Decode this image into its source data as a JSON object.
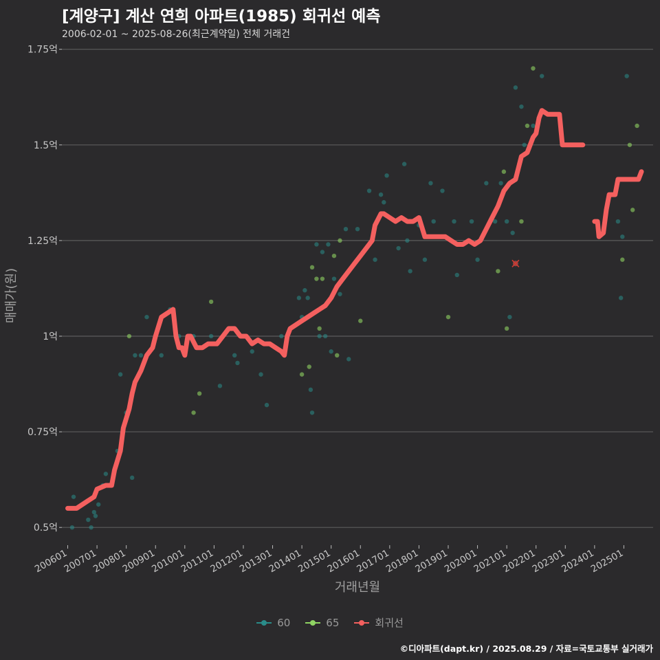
{
  "header": {
    "title": "[계양구] 계산 연희 아파트(1985) 회귀선 예측",
    "subtitle": "2006-02-01 ~ 2025-08-26(최근계약일) 전체 거래건"
  },
  "footer": {
    "credit": "©디아파트(dapt.kr) / 2025.08.29 / 자료=국토교통부 실거래가"
  },
  "colors": {
    "s60": "#2a8c8a",
    "s65": "#8fd463",
    "regression": "#f4605f",
    "grid": "#5c5c5c",
    "text": "#c8c8c8"
  },
  "chart_data": {
    "type": "scatter",
    "title": "[계양구] 계산 연희 아파트(1985) 회귀선 예측",
    "xlabel": "거래년월",
    "ylabel": "매매가(원)",
    "x_range": [
      2005.8,
      2026.0
    ],
    "ylim": [
      0.45,
      1.78
    ],
    "y_ticks": [
      {
        "value": 0.5,
        "label": "0.5억"
      },
      {
        "value": 0.75,
        "label": "0.75억"
      },
      {
        "value": 1.0,
        "label": "1억"
      },
      {
        "value": 1.25,
        "label": "1.25억"
      },
      {
        "value": 1.5,
        "label": "1.5억"
      },
      {
        "value": 1.75,
        "label": "1.75억"
      }
    ],
    "x_ticks": [
      "200601",
      "200701",
      "200801",
      "200901",
      "201001",
      "201101",
      "201201",
      "201301",
      "201401",
      "201501",
      "201601",
      "201701",
      "201801",
      "201901",
      "202001",
      "202101",
      "202201",
      "202301",
      "202401",
      "202501"
    ],
    "legend": [
      {
        "name": "60",
        "key": "s60"
      },
      {
        "name": "65",
        "key": "s65"
      },
      {
        "name": "회귀선",
        "key": "regression"
      }
    ],
    "series_60": [
      [
        2006.15,
        0.5
      ],
      [
        2006.2,
        0.58
      ],
      [
        2006.7,
        0.52
      ],
      [
        2006.8,
        0.5
      ],
      [
        2006.9,
        0.54
      ],
      [
        2006.95,
        0.53
      ],
      [
        2007.05,
        0.56
      ],
      [
        2007.2,
        0.61
      ],
      [
        2007.3,
        0.64
      ],
      [
        2007.7,
        0.7
      ],
      [
        2007.8,
        0.9
      ],
      [
        2008.0,
        0.8
      ],
      [
        2008.2,
        0.63
      ],
      [
        2008.3,
        0.95
      ],
      [
        2008.5,
        0.95
      ],
      [
        2008.7,
        1.05
      ],
      [
        2009.2,
        0.95
      ],
      [
        2009.5,
        1.07
      ],
      [
        2009.8,
        1.0
      ],
      [
        2010.3,
        1.0
      ],
      [
        2010.9,
        1.0
      ],
      [
        2011.2,
        0.87
      ],
      [
        2011.7,
        0.95
      ],
      [
        2011.8,
        0.93
      ],
      [
        2012.3,
        0.96
      ],
      [
        2012.6,
        0.9
      ],
      [
        2012.8,
        0.82
      ],
      [
        2013.3,
        1.0
      ],
      [
        2013.6,
        1.02
      ],
      [
        2013.9,
        1.1
      ],
      [
        2014.0,
        1.05
      ],
      [
        2014.1,
        1.12
      ],
      [
        2014.2,
        1.1
      ],
      [
        2014.3,
        0.86
      ],
      [
        2014.35,
        0.8
      ],
      [
        2014.5,
        1.24
      ],
      [
        2014.6,
        1.0
      ],
      [
        2014.7,
        1.22
      ],
      [
        2014.8,
        1.0
      ],
      [
        2014.9,
        1.24
      ],
      [
        2015.0,
        0.96
      ],
      [
        2015.1,
        1.15
      ],
      [
        2015.3,
        1.11
      ],
      [
        2015.5,
        1.28
      ],
      [
        2015.6,
        0.94
      ],
      [
        2015.9,
        1.28
      ],
      [
        2016.3,
        1.38
      ],
      [
        2016.5,
        1.2
      ],
      [
        2016.7,
        1.37
      ],
      [
        2016.8,
        1.35
      ],
      [
        2016.9,
        1.42
      ],
      [
        2017.3,
        1.23
      ],
      [
        2017.5,
        1.45
      ],
      [
        2017.6,
        1.25
      ],
      [
        2017.7,
        1.17
      ],
      [
        2018.0,
        1.29
      ],
      [
        2018.2,
        1.2
      ],
      [
        2018.4,
        1.4
      ],
      [
        2018.5,
        1.3
      ],
      [
        2018.8,
        1.38
      ],
      [
        2019.2,
        1.3
      ],
      [
        2019.3,
        1.16
      ],
      [
        2019.8,
        1.3
      ],
      [
        2020.0,
        1.2
      ],
      [
        2020.3,
        1.4
      ],
      [
        2020.6,
        1.3
      ],
      [
        2020.8,
        1.4
      ],
      [
        2021.0,
        1.3
      ],
      [
        2021.1,
        1.05
      ],
      [
        2021.2,
        1.27
      ],
      [
        2021.3,
        1.65
      ],
      [
        2021.5,
        1.6
      ],
      [
        2021.6,
        1.5
      ],
      [
        2021.9,
        1.55
      ],
      [
        2022.2,
        1.68
      ],
      [
        2024.8,
        1.3
      ],
      [
        2024.9,
        1.1
      ],
      [
        2024.95,
        1.26
      ],
      [
        2025.1,
        1.68
      ]
    ],
    "series_65": [
      [
        2008.1,
        1.0
      ],
      [
        2010.3,
        0.8
      ],
      [
        2010.5,
        0.85
      ],
      [
        2010.9,
        1.09
      ],
      [
        2014.0,
        0.9
      ],
      [
        2014.25,
        0.92
      ],
      [
        2014.35,
        1.18
      ],
      [
        2014.5,
        1.15
      ],
      [
        2014.6,
        1.02
      ],
      [
        2014.7,
        1.15
      ],
      [
        2015.1,
        1.21
      ],
      [
        2015.2,
        0.95
      ],
      [
        2015.3,
        1.25
      ],
      [
        2016.0,
        1.04
      ],
      [
        2019.0,
        1.05
      ],
      [
        2020.5,
        1.31
      ],
      [
        2020.7,
        1.17
      ],
      [
        2020.9,
        1.43
      ],
      [
        2021.0,
        1.02
      ],
      [
        2021.5,
        1.3
      ],
      [
        2021.7,
        1.55
      ],
      [
        2021.9,
        1.7
      ],
      [
        2024.95,
        1.2
      ],
      [
        2025.2,
        1.5
      ],
      [
        2025.3,
        1.33
      ],
      [
        2025.45,
        1.55
      ]
    ],
    "cancelled_marker": [
      2021.3,
      1.19
    ],
    "regression_segments": [
      [
        [
          2006.0,
          0.55
        ],
        [
          2006.3,
          0.55
        ],
        [
          2006.5,
          0.56
        ],
        [
          2006.7,
          0.57
        ],
        [
          2006.9,
          0.58
        ],
        [
          2007.0,
          0.6
        ],
        [
          2007.3,
          0.61
        ],
        [
          2007.5,
          0.61
        ],
        [
          2007.6,
          0.65
        ],
        [
          2007.8,
          0.7
        ],
        [
          2007.9,
          0.76
        ],
        [
          2008.1,
          0.81
        ],
        [
          2008.2,
          0.85
        ],
        [
          2008.3,
          0.88
        ],
        [
          2008.5,
          0.91
        ],
        [
          2008.7,
          0.95
        ],
        [
          2008.9,
          0.97
        ],
        [
          2009.0,
          1.0
        ],
        [
          2009.2,
          1.05
        ],
        [
          2009.4,
          1.06
        ],
        [
          2009.6,
          1.07
        ],
        [
          2009.7,
          1.0
        ],
        [
          2009.8,
          0.97
        ],
        [
          2009.9,
          0.97
        ],
        [
          2010.0,
          0.95
        ],
        [
          2010.1,
          1.0
        ],
        [
          2010.2,
          1.0
        ],
        [
          2010.4,
          0.97
        ],
        [
          2010.6,
          0.97
        ],
        [
          2010.8,
          0.98
        ],
        [
          2011.1,
          0.98
        ],
        [
          2011.3,
          1.0
        ],
        [
          2011.5,
          1.02
        ],
        [
          2011.7,
          1.02
        ],
        [
          2011.9,
          1.0
        ],
        [
          2012.1,
          1.0
        ],
        [
          2012.3,
          0.98
        ],
        [
          2012.5,
          0.99
        ],
        [
          2012.7,
          0.98
        ],
        [
          2012.9,
          0.98
        ],
        [
          2013.1,
          0.97
        ],
        [
          2013.3,
          0.96
        ],
        [
          2013.4,
          0.95
        ],
        [
          2013.5,
          1.0
        ],
        [
          2013.6,
          1.02
        ],
        [
          2013.8,
          1.03
        ],
        [
          2014.0,
          1.04
        ],
        [
          2014.2,
          1.05
        ],
        [
          2014.4,
          1.06
        ],
        [
          2014.6,
          1.07
        ],
        [
          2014.8,
          1.08
        ],
        [
          2015.0,
          1.1
        ],
        [
          2015.2,
          1.13
        ],
        [
          2015.4,
          1.15
        ],
        [
          2015.6,
          1.17
        ],
        [
          2015.8,
          1.19
        ],
        [
          2016.0,
          1.21
        ],
        [
          2016.2,
          1.23
        ],
        [
          2016.4,
          1.25
        ],
        [
          2016.5,
          1.29
        ],
        [
          2016.7,
          1.32
        ],
        [
          2016.8,
          1.32
        ],
        [
          2017.0,
          1.31
        ],
        [
          2017.2,
          1.3
        ],
        [
          2017.4,
          1.31
        ],
        [
          2017.6,
          1.3
        ],
        [
          2017.8,
          1.3
        ],
        [
          2018.0,
          1.31
        ],
        [
          2018.2,
          1.26
        ],
        [
          2018.4,
          1.26
        ],
        [
          2018.6,
          1.26
        ],
        [
          2018.9,
          1.26
        ],
        [
          2019.1,
          1.25
        ],
        [
          2019.3,
          1.24
        ],
        [
          2019.5,
          1.24
        ],
        [
          2019.7,
          1.25
        ],
        [
          2019.9,
          1.24
        ],
        [
          2020.1,
          1.25
        ],
        [
          2020.3,
          1.28
        ],
        [
          2020.5,
          1.31
        ],
        [
          2020.7,
          1.34
        ],
        [
          2020.9,
          1.38
        ],
        [
          2021.1,
          1.4
        ],
        [
          2021.3,
          1.41
        ],
        [
          2021.5,
          1.47
        ],
        [
          2021.7,
          1.48
        ],
        [
          2021.9,
          1.52
        ],
        [
          2022.0,
          1.53
        ],
        [
          2022.1,
          1.57
        ],
        [
          2022.2,
          1.59
        ],
        [
          2022.4,
          1.58
        ],
        [
          2022.6,
          1.58
        ],
        [
          2022.8,
          1.58
        ],
        [
          2022.9,
          1.5
        ],
        [
          2023.1,
          1.5
        ],
        [
          2023.4,
          1.5
        ],
        [
          2023.6,
          1.5
        ]
      ],
      [
        [
          2024.0,
          1.3
        ],
        [
          2024.1,
          1.3
        ],
        [
          2024.15,
          1.26
        ],
        [
          2024.3,
          1.27
        ],
        [
          2024.4,
          1.33
        ],
        [
          2024.5,
          1.37
        ],
        [
          2024.7,
          1.37
        ],
        [
          2024.8,
          1.41
        ],
        [
          2025.0,
          1.41
        ],
        [
          2025.3,
          1.41
        ],
        [
          2025.5,
          1.41
        ],
        [
          2025.6,
          1.43
        ]
      ]
    ]
  }
}
